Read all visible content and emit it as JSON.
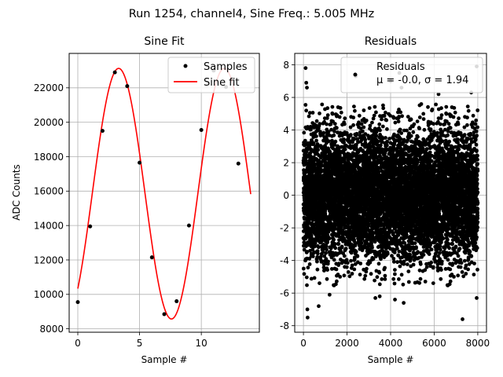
{
  "suptitle": "Run 1254, channel4, Sine Freq.: 5.005 MHz",
  "chart_data": [
    {
      "type": "line",
      "title": "Sine Fit",
      "xlabel": "Sample #",
      "ylabel": "ADC Counts",
      "xlim": [
        -0.7,
        14.7
      ],
      "ylim": [
        7800,
        24000
      ],
      "xticks": [
        0,
        5,
        10
      ],
      "yticks": [
        8000,
        10000,
        12000,
        14000,
        16000,
        18000,
        20000,
        22000
      ],
      "grid": true,
      "legend": {
        "placement": "top-right",
        "entries": [
          "Samples",
          "Sine fit"
        ]
      },
      "fit": {
        "offset": 15850,
        "amplitude": 7280,
        "period": 8.55,
        "x0": 1.17,
        "x_range": [
          0,
          14
        ]
      },
      "series": [
        {
          "name": "Samples",
          "style": "points",
          "color": "#000000",
          "x": [
            0,
            1,
            2,
            3,
            4,
            5,
            6,
            7,
            8,
            9,
            10,
            11,
            12,
            13
          ],
          "y": [
            9550,
            13950,
            19500,
            22900,
            22100,
            17650,
            12150,
            8850,
            9600,
            14000,
            19550,
            23000,
            22050,
            17600
          ]
        },
        {
          "name": "Sine fit",
          "style": "line",
          "color": "#ff0000"
        }
      ]
    },
    {
      "type": "scatter",
      "title": "Residuals",
      "xlabel": "Sample #",
      "ylabel": "",
      "xlim": [
        -400,
        8400
      ],
      "ylim": [
        -8.4,
        8.7
      ],
      "xticks": [
        0,
        2000,
        4000,
        6000,
        8000
      ],
      "yticks": [
        -8,
        -6,
        -4,
        -2,
        0,
        2,
        4,
        6,
        8
      ],
      "grid": true,
      "legend": {
        "placement": "top-right",
        "entries": [
          "Residuals",
          "μ = -0.0, σ = 1.94"
        ]
      },
      "series": [
        {
          "name": "Residuals",
          "color": "#000000",
          "n_points": 8000,
          "mean": -0.0,
          "std": 1.94,
          "x_range": [
            0,
            8000
          ],
          "outliers": [
            {
              "x": 100,
              "y": 7.8
            },
            {
              "x": 130,
              "y": 6.9
            },
            {
              "x": 160,
              "y": 6.6
            },
            {
              "x": 180,
              "y": -7.0
            },
            {
              "x": 190,
              "y": -7.5
            },
            {
              "x": 700,
              "y": -6.8
            },
            {
              "x": 1200,
              "y": -6.1
            },
            {
              "x": 2400,
              "y": 7.3
            },
            {
              "x": 3300,
              "y": -6.3
            },
            {
              "x": 3500,
              "y": -6.2
            },
            {
              "x": 4000,
              "y": 7.0
            },
            {
              "x": 4200,
              "y": -6.4
            },
            {
              "x": 4400,
              "y": 7.5
            },
            {
              "x": 4500,
              "y": 6.6
            },
            {
              "x": 4600,
              "y": -6.6
            },
            {
              "x": 6200,
              "y": 6.2
            },
            {
              "x": 7300,
              "y": -7.6
            },
            {
              "x": 7700,
              "y": 6.3
            },
            {
              "x": 7950,
              "y": 7.9
            },
            {
              "x": 7950,
              "y": -6.3
            }
          ]
        }
      ]
    }
  ]
}
